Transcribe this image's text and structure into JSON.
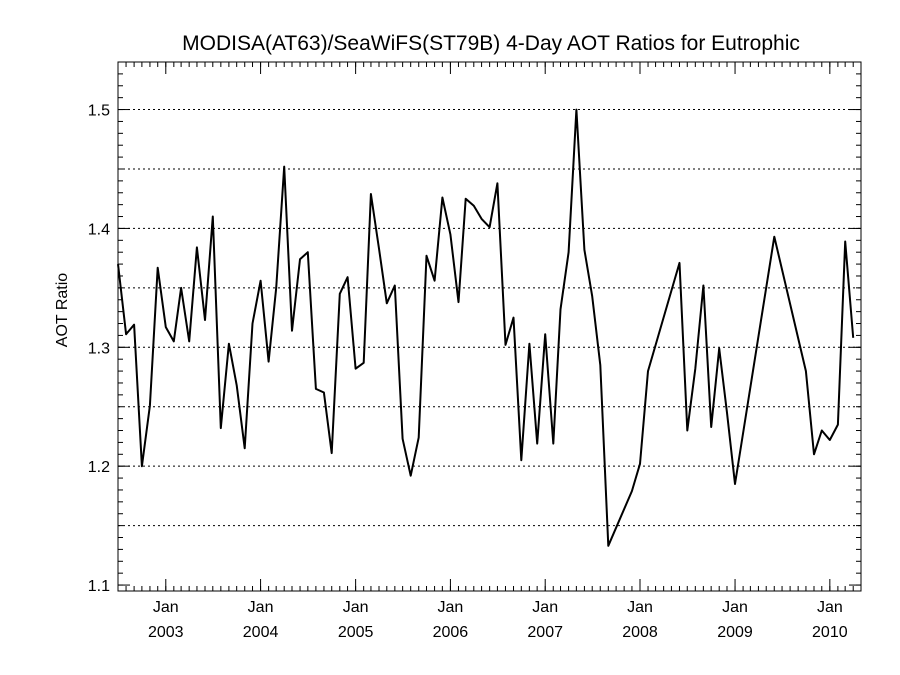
{
  "chart_data": {
    "type": "line",
    "title": "MODISA(AT63)/SeaWiFS(ST79B) 4-Day AOT Ratios for Eutrophic",
    "xlabel": "",
    "ylabel": "AOT Ratio",
    "xlim": [
      "2002-07-01",
      "2010-05-01"
    ],
    "ylim": [
      1.095,
      1.54
    ],
    "y_ticks": [
      1.1,
      1.2,
      1.3,
      1.4,
      1.5
    ],
    "y_tick_labels": [
      "1.1",
      "1.2",
      "1.3",
      "1.4",
      "1.5"
    ],
    "y_minor_step": 0.01,
    "y_gridlines": [
      1.15,
      1.2,
      1.25,
      1.3,
      1.35,
      1.4,
      1.45,
      1.5
    ],
    "x_ticks": [
      {
        "date": "2003-01-01",
        "month": "Jan",
        "year": "2003"
      },
      {
        "date": "2004-01-01",
        "month": "Jan",
        "year": "2004"
      },
      {
        "date": "2005-01-01",
        "month": "Jan",
        "year": "2005"
      },
      {
        "date": "2006-01-01",
        "month": "Jan",
        "year": "2006"
      },
      {
        "date": "2007-01-01",
        "month": "Jan",
        "year": "2007"
      },
      {
        "date": "2008-01-01",
        "month": "Jan",
        "year": "2008"
      },
      {
        "date": "2009-01-01",
        "month": "Jan",
        "year": "2009"
      },
      {
        "date": "2010-01-01",
        "month": "Jan",
        "year": "2010"
      }
    ],
    "x_minor_interval": "month",
    "grid": "horizontal dotted",
    "series": [
      {
        "color": "#000000",
        "points": [
          [
            "2002-07-01",
            1.37
          ],
          [
            "2002-08-01",
            1.311
          ],
          [
            "2002-09-01",
            1.319
          ],
          [
            "2002-10-01",
            1.2
          ],
          [
            "2002-11-01",
            1.251
          ],
          [
            "2002-12-01",
            1.367
          ],
          [
            "2003-01-01",
            1.317
          ],
          [
            "2003-02-01",
            1.305
          ],
          [
            "2003-03-01",
            1.35
          ],
          [
            "2003-04-01",
            1.305
          ],
          [
            "2003-05-01",
            1.384
          ],
          [
            "2003-06-01",
            1.323
          ],
          [
            "2003-07-01",
            1.41
          ],
          [
            "2003-08-01",
            1.232
          ],
          [
            "2003-09-01",
            1.303
          ],
          [
            "2003-10-01",
            1.268
          ],
          [
            "2003-11-01",
            1.215
          ],
          [
            "2003-12-01",
            1.32
          ],
          [
            "2004-01-01",
            1.356
          ],
          [
            "2004-02-01",
            1.288
          ],
          [
            "2004-03-01",
            1.35
          ],
          [
            "2004-04-01",
            1.452
          ],
          [
            "2004-05-01",
            1.314
          ],
          [
            "2004-06-01",
            1.374
          ],
          [
            "2004-07-01",
            1.38
          ],
          [
            "2004-08-01",
            1.265
          ],
          [
            "2004-09-01",
            1.262
          ],
          [
            "2004-10-01",
            1.211
          ],
          [
            "2004-11-01",
            1.345
          ],
          [
            "2004-12-01",
            1.359
          ],
          [
            "2005-01-01",
            1.282
          ],
          [
            "2005-02-01",
            1.287
          ],
          [
            "2005-03-01",
            1.429
          ],
          [
            "2005-04-01",
            1.383
          ],
          [
            "2005-05-01",
            1.337
          ],
          [
            "2005-06-01",
            1.352
          ],
          [
            "2005-07-01",
            1.223
          ],
          [
            "2005-08-01",
            1.192
          ],
          [
            "2005-09-01",
            1.224
          ],
          [
            "2005-10-01",
            1.377
          ],
          [
            "2005-11-01",
            1.356
          ],
          [
            "2005-12-01",
            1.426
          ],
          [
            "2006-01-01",
            1.395
          ],
          [
            "2006-02-01",
            1.338
          ],
          [
            "2006-03-01",
            1.425
          ],
          [
            "2006-04-01",
            1.419
          ],
          [
            "2006-05-01",
            1.408
          ],
          [
            "2006-06-01",
            1.401
          ],
          [
            "2006-07-01",
            1.438
          ],
          [
            "2006-08-01",
            1.302
          ],
          [
            "2006-09-01",
            1.325
          ],
          [
            "2006-10-01",
            1.205
          ],
          [
            "2006-11-01",
            1.303
          ],
          [
            "2006-12-01",
            1.219
          ],
          [
            "2007-01-01",
            1.311
          ],
          [
            "2007-02-01",
            1.219
          ],
          [
            "2007-03-01",
            1.332
          ],
          [
            "2007-04-01",
            1.38
          ],
          [
            "2007-05-01",
            1.5
          ],
          [
            "2007-06-01",
            1.382
          ],
          [
            "2007-07-01",
            1.343
          ],
          [
            "2007-08-01",
            1.285
          ],
          [
            "2007-09-01",
            1.133
          ],
          [
            "2007-12-01",
            1.179
          ],
          [
            "2008-01-01",
            1.202
          ],
          [
            "2008-02-01",
            1.28
          ],
          [
            "2008-06-01",
            1.371
          ],
          [
            "2008-07-01",
            1.23
          ],
          [
            "2008-08-01",
            1.282
          ],
          [
            "2008-09-01",
            1.352
          ],
          [
            "2008-10-01",
            1.233
          ],
          [
            "2008-11-01",
            1.299
          ],
          [
            "2008-12-01",
            1.245
          ],
          [
            "2009-01-01",
            1.185
          ],
          [
            "2009-06-01",
            1.393
          ],
          [
            "2009-10-01",
            1.28
          ],
          [
            "2009-11-01",
            1.21
          ],
          [
            "2009-12-01",
            1.23
          ],
          [
            "2010-01-01",
            1.222
          ],
          [
            "2010-02-01",
            1.235
          ],
          [
            "2010-03-01",
            1.389
          ],
          [
            "2010-04-01",
            1.308
          ]
        ]
      }
    ]
  }
}
